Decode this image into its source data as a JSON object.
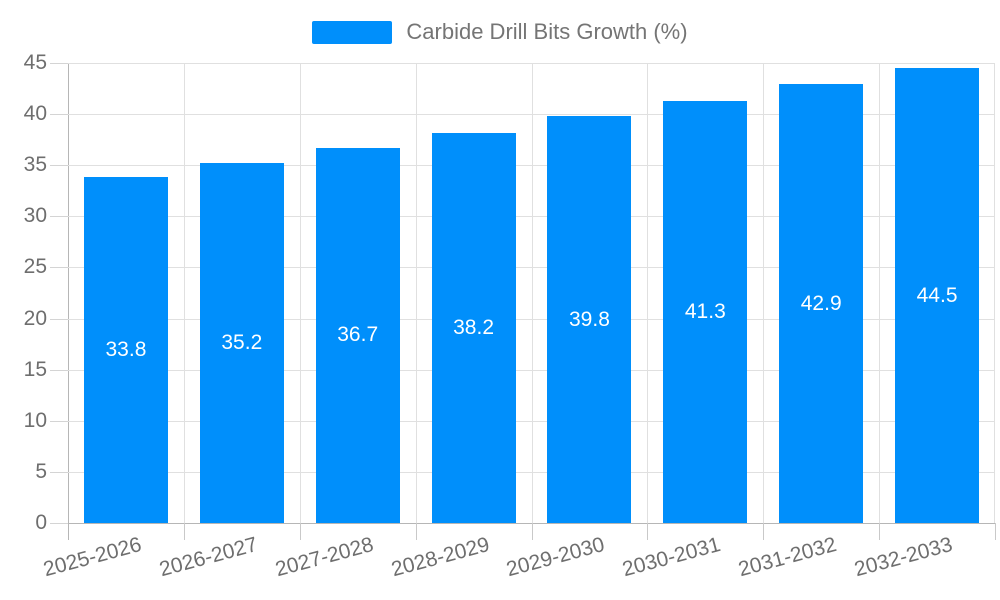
{
  "legend": {
    "label": "Carbide Drill Bits Growth (%)",
    "swatch_color": "#008FFB"
  },
  "chart_data": {
    "type": "bar",
    "title": "Carbide Drill Bits Growth (%)",
    "series_name": "Carbide Drill Bits Growth (%)",
    "categories": [
      "2025-2026",
      "2026-2027",
      "2027-2028",
      "2028-2029",
      "2029-2030",
      "2030-2031",
      "2031-2032",
      "2032-2033"
    ],
    "values": [
      33.8,
      35.2,
      36.7,
      38.2,
      39.8,
      41.3,
      42.9,
      44.5
    ],
    "xlabel": "",
    "ylabel": "",
    "ylim": [
      0,
      45
    ],
    "yticks": [
      0,
      5,
      10,
      15,
      20,
      25,
      30,
      35,
      40,
      45
    ],
    "grid": true,
    "legend_position": "top",
    "bar_color": "#008FFB",
    "data_label_color": "#ffffff",
    "axis_label_color": "#6e6e6e",
    "grid_color": "#e0e0e0",
    "axis_line_color": "#b6b6b6"
  }
}
